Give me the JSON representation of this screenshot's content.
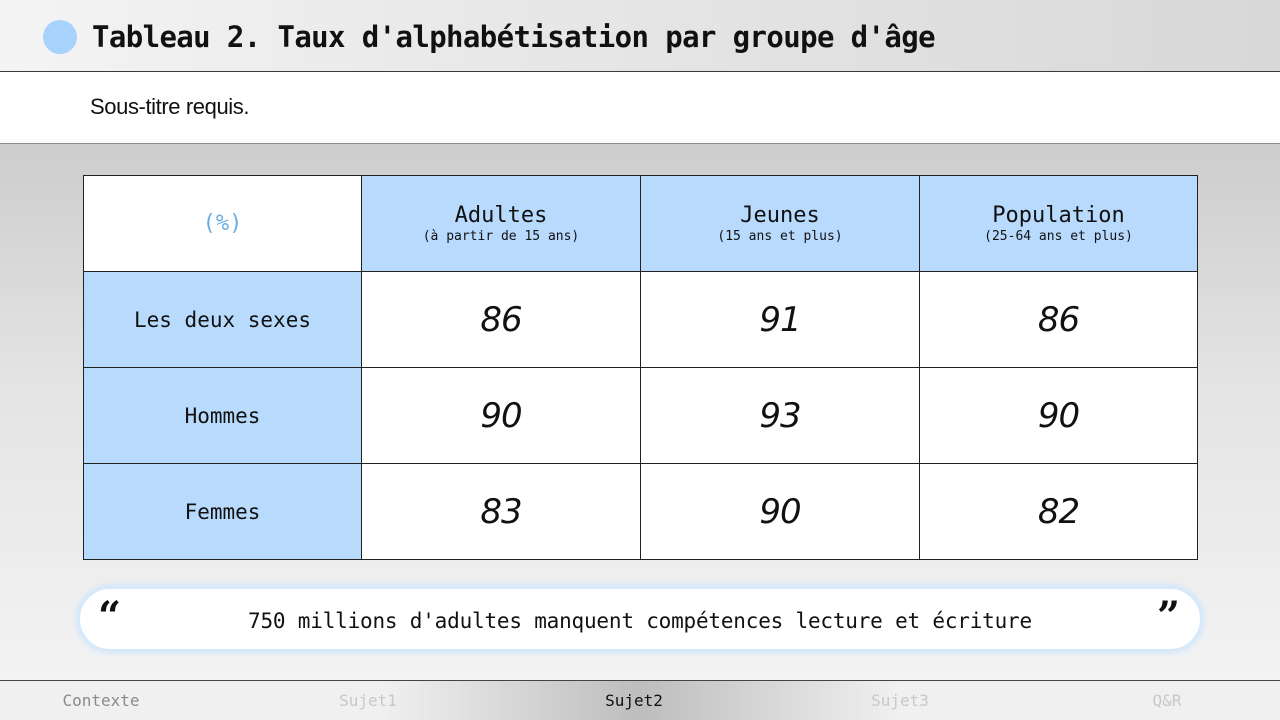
{
  "header": {
    "title": "Tableau 2. Taux d'alphabétisation par groupe d'âge",
    "accent_color": "#a7d2fb"
  },
  "subtitle": "Sous-titre requis.",
  "table": {
    "corner_label": "(%)",
    "columns": [
      {
        "label": "Adultes",
        "sublabel": "(à partir de 15 ans)"
      },
      {
        "label": "Jeunes",
        "sublabel": "(15 ans et plus)"
      },
      {
        "label": "Population",
        "sublabel": "(25-64 ans et plus)"
      }
    ],
    "rows": [
      {
        "label": "Les deux sexes",
        "values": [
          "86",
          "91",
          "86"
        ]
      },
      {
        "label": "Hommes",
        "values": [
          "90",
          "93",
          "90"
        ]
      },
      {
        "label": "Femmes",
        "values": [
          "83",
          "90",
          "82"
        ]
      }
    ],
    "header_color": "#b8dafd"
  },
  "quote": {
    "open_mark": "“",
    "text": "750 millions d'adultes manquent compétences lecture et écriture",
    "close_mark": "”"
  },
  "nav": {
    "items": [
      "Contexte",
      "Sujet1",
      "Sujet2",
      "Sujet3",
      "Q&R"
    ],
    "active": "Sujet2"
  }
}
